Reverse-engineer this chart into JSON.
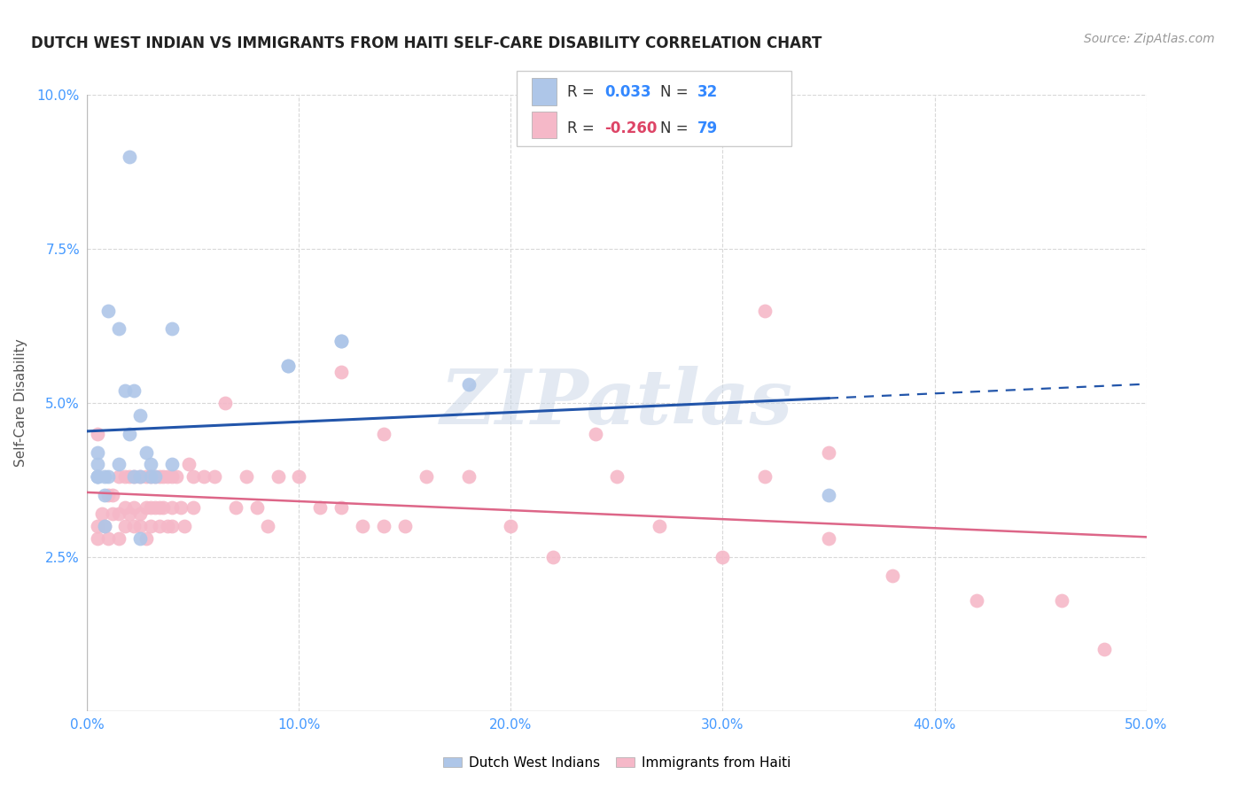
{
  "title": "DUTCH WEST INDIAN VS IMMIGRANTS FROM HAITI SELF-CARE DISABILITY CORRELATION CHART",
  "source": "Source: ZipAtlas.com",
  "ylabel_label": "Self-Care Disability",
  "xlim": [
    0.0,
    0.5
  ],
  "ylim": [
    0.0,
    0.1
  ],
  "xticks": [
    0.0,
    0.1,
    0.2,
    0.3,
    0.4,
    0.5
  ],
  "yticks": [
    0.0,
    0.025,
    0.05,
    0.075,
    0.1
  ],
  "ytick_labels": [
    "",
    "2.5%",
    "5.0%",
    "7.5%",
    "10.0%"
  ],
  "xtick_labels": [
    "0.0%",
    "10.0%",
    "20.0%",
    "30.0%",
    "40.0%",
    "50.0%"
  ],
  "legend_r_blue": "0.033",
  "legend_n_blue": "32",
  "legend_r_pink": "-0.260",
  "legend_n_pink": "79",
  "blue_color": "#aec6e8",
  "pink_color": "#f5b8c8",
  "blue_line_color": "#2255aa",
  "pink_line_color": "#dd6688",
  "blue_scatter_x": [
    0.02,
    0.01,
    0.005,
    0.005,
    0.01,
    0.015,
    0.005,
    0.008,
    0.008,
    0.022,
    0.025,
    0.03,
    0.03,
    0.032,
    0.028,
    0.04,
    0.04,
    0.015,
    0.018,
    0.022,
    0.008,
    0.025,
    0.095,
    0.095,
    0.12,
    0.12,
    0.18,
    0.02,
    0.025,
    0.35,
    0.005,
    0.005
  ],
  "blue_scatter_y": [
    0.045,
    0.065,
    0.042,
    0.038,
    0.038,
    0.04,
    0.04,
    0.038,
    0.035,
    0.038,
    0.038,
    0.04,
    0.038,
    0.038,
    0.042,
    0.04,
    0.062,
    0.062,
    0.052,
    0.052,
    0.03,
    0.048,
    0.056,
    0.056,
    0.06,
    0.06,
    0.053,
    0.09,
    0.028,
    0.035,
    0.038,
    0.038
  ],
  "pink_scatter_x": [
    0.005,
    0.005,
    0.007,
    0.008,
    0.01,
    0.01,
    0.012,
    0.012,
    0.015,
    0.015,
    0.015,
    0.018,
    0.018,
    0.018,
    0.02,
    0.02,
    0.022,
    0.022,
    0.022,
    0.025,
    0.025,
    0.025,
    0.028,
    0.028,
    0.028,
    0.03,
    0.03,
    0.03,
    0.032,
    0.032,
    0.034,
    0.034,
    0.034,
    0.036,
    0.036,
    0.038,
    0.038,
    0.04,
    0.04,
    0.04,
    0.042,
    0.044,
    0.046,
    0.048,
    0.05,
    0.05,
    0.055,
    0.06,
    0.065,
    0.07,
    0.075,
    0.08,
    0.085,
    0.09,
    0.1,
    0.11,
    0.12,
    0.13,
    0.14,
    0.15,
    0.16,
    0.18,
    0.2,
    0.22,
    0.25,
    0.27,
    0.3,
    0.32,
    0.35,
    0.38,
    0.42,
    0.46,
    0.24,
    0.005,
    0.12,
    0.14,
    0.32,
    0.35,
    0.48
  ],
  "pink_scatter_y": [
    0.03,
    0.028,
    0.032,
    0.03,
    0.035,
    0.028,
    0.032,
    0.035,
    0.038,
    0.032,
    0.028,
    0.038,
    0.03,
    0.033,
    0.038,
    0.032,
    0.038,
    0.03,
    0.033,
    0.038,
    0.032,
    0.03,
    0.038,
    0.033,
    0.028,
    0.038,
    0.033,
    0.03,
    0.038,
    0.033,
    0.038,
    0.033,
    0.03,
    0.038,
    0.033,
    0.038,
    0.03,
    0.038,
    0.033,
    0.03,
    0.038,
    0.033,
    0.03,
    0.04,
    0.038,
    0.033,
    0.038,
    0.038,
    0.05,
    0.033,
    0.038,
    0.033,
    0.03,
    0.038,
    0.038,
    0.033,
    0.033,
    0.03,
    0.03,
    0.03,
    0.038,
    0.038,
    0.03,
    0.025,
    0.038,
    0.03,
    0.025,
    0.038,
    0.028,
    0.022,
    0.018,
    0.018,
    0.045,
    0.045,
    0.055,
    0.045,
    0.065,
    0.042,
    0.01
  ],
  "watermark": "ZIPatlas",
  "background_color": "#ffffff",
  "grid_color": "#d8d8d8"
}
